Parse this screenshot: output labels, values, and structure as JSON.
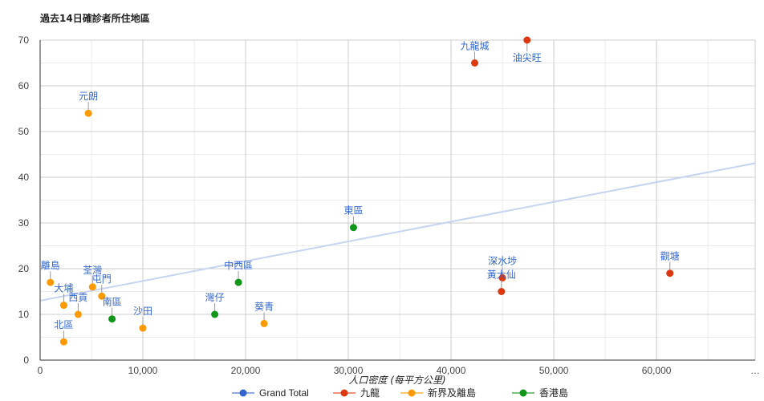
{
  "chart_data": {
    "type": "scatter",
    "title": "過去14日確診者所住地區",
    "xlabel": "人口密度 (每平方公里)",
    "ylabel": "",
    "xlim": [
      0,
      69600
    ],
    "ylim": [
      0,
      70
    ],
    "x_ticks": [
      "0",
      "10,000",
      "20,000",
      "30,000",
      "40,000",
      "50,000",
      "60,000"
    ],
    "x_tick_values": [
      0,
      10000,
      20000,
      30000,
      40000,
      50000,
      60000
    ],
    "x_overflow_label": "…",
    "y_ticks": [
      "0",
      "10",
      "20",
      "30",
      "40",
      "50",
      "60",
      "70"
    ],
    "y_tick_values": [
      0,
      10,
      20,
      30,
      40,
      50,
      60,
      70
    ],
    "grid": true,
    "legend_position": "bottom",
    "series": [
      {
        "name": "Grand Total",
        "color": "#3366cc",
        "points": []
      },
      {
        "name": "九龍",
        "color": "#dc3912",
        "points": [
          {
            "label": "九龍城",
            "x": 42300,
            "y": 65,
            "label_pos": "above"
          },
          {
            "label": "油尖旺",
            "x": 47400,
            "y": 70,
            "label_pos": "below"
          },
          {
            "label": "深水埗",
            "x": 45000,
            "y": 18,
            "label_pos": "above"
          },
          {
            "label": "黃大仙",
            "x": 44900,
            "y": 15,
            "label_pos": "above"
          },
          {
            "label": "觀塘",
            "x": 61300,
            "y": 19,
            "label_pos": "above"
          }
        ]
      },
      {
        "name": "新界及離島",
        "color": "#ff9900",
        "points": [
          {
            "label": "離島",
            "x": 1000,
            "y": 17,
            "label_pos": "above"
          },
          {
            "label": "大埔",
            "x": 2300,
            "y": 12,
            "label_pos": "above"
          },
          {
            "label": "西貢",
            "x": 3700,
            "y": 10,
            "label_pos": "above"
          },
          {
            "label": "北區",
            "x": 2300,
            "y": 4,
            "label_pos": "above"
          },
          {
            "label": "荃灣",
            "x": 5100,
            "y": 16,
            "label_pos": "above"
          },
          {
            "label": "屯門",
            "x": 6000,
            "y": 14,
            "label_pos": "above"
          },
          {
            "label": "沙田",
            "x": 10000,
            "y": 7,
            "label_pos": "above"
          },
          {
            "label": "葵青",
            "x": 21800,
            "y": 8,
            "label_pos": "above"
          },
          {
            "label": "元朗",
            "x": 4700,
            "y": 54,
            "label_pos": "above"
          }
        ]
      },
      {
        "name": "香港島",
        "color": "#109618",
        "points": [
          {
            "label": "南區",
            "x": 7000,
            "y": 9,
            "label_pos": "above"
          },
          {
            "label": "灣仔",
            "x": 17000,
            "y": 10,
            "label_pos": "above"
          },
          {
            "label": "中西區",
            "x": 19300,
            "y": 17,
            "label_pos": "above"
          },
          {
            "label": "東區",
            "x": 30500,
            "y": 29,
            "label_pos": "above"
          }
        ]
      }
    ],
    "trendline": {
      "series": "Grand Total",
      "color": "#c6d4ef",
      "intercept": 13.0,
      "slope": 0.000432
    }
  }
}
